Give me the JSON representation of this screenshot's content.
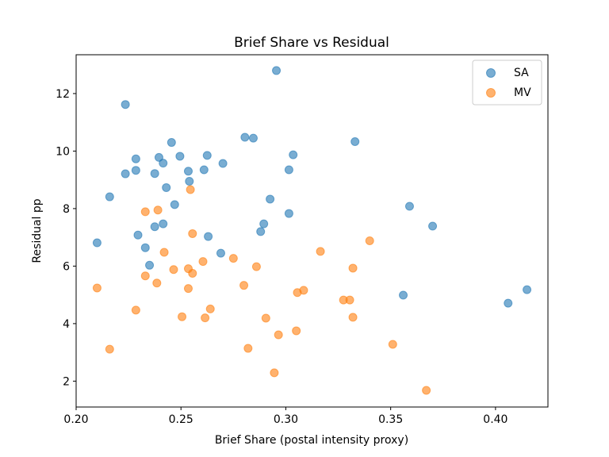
{
  "chart_data": {
    "type": "scatter",
    "title": "Brief Share vs Residual",
    "xlabel": "Brief Share (postal intensity proxy)",
    "ylabel": "Residual pp",
    "xlim": [
      0.2,
      0.425
    ],
    "ylim": [
      1.1,
      13.35
    ],
    "xticks": [
      0.2,
      0.25,
      0.3,
      0.35,
      0.4
    ],
    "xtick_labels": [
      "0.20",
      "0.25",
      "0.30",
      "0.35",
      "0.40"
    ],
    "yticks": [
      2,
      4,
      6,
      8,
      10,
      12
    ],
    "ytick_labels": [
      "2",
      "4",
      "6",
      "8",
      "10",
      "12"
    ],
    "grid": false,
    "legend_position": "top-right",
    "series": [
      {
        "name": "SA",
        "color": "#1f77b4",
        "x": [
          0.2955,
          0.2235,
          0.333,
          0.2455,
          0.2805,
          0.2845,
          0.3035,
          0.2625,
          0.2495,
          0.2395,
          0.2285,
          0.2415,
          0.27,
          0.2285,
          0.2235,
          0.2375,
          0.2535,
          0.261,
          0.3015,
          0.254,
          0.243,
          0.216,
          0.2925,
          0.247,
          0.359,
          0.3015,
          0.2895,
          0.37,
          0.288,
          0.2375,
          0.2415,
          0.2295,
          0.263,
          0.233,
          0.269,
          0.235,
          0.21,
          0.415,
          0.356,
          0.406
        ],
        "y": [
          12.8,
          11.62,
          10.33,
          10.3,
          10.48,
          10.45,
          9.87,
          9.85,
          9.82,
          9.78,
          9.73,
          9.58,
          9.57,
          9.33,
          9.21,
          9.22,
          9.3,
          9.35,
          9.35,
          8.95,
          8.73,
          8.41,
          8.33,
          8.14,
          8.08,
          7.83,
          7.47,
          7.39,
          7.2,
          7.37,
          7.47,
          7.08,
          7.03,
          6.64,
          6.45,
          6.03,
          6.81,
          5.18,
          4.99,
          4.71
        ]
      },
      {
        "name": "MV",
        "color": "#ff7f0e",
        "x": [
          0.2545,
          0.233,
          0.239,
          0.2555,
          0.34,
          0.3165,
          0.242,
          0.275,
          0.2605,
          0.332,
          0.286,
          0.2535,
          0.2465,
          0.2555,
          0.233,
          0.2385,
          0.28,
          0.21,
          0.2535,
          0.3085,
          0.3055,
          0.3275,
          0.3305,
          0.264,
          0.2285,
          0.2505,
          0.2615,
          0.2905,
          0.332,
          0.305,
          0.2965,
          0.351,
          0.216,
          0.282,
          0.2945,
          0.367
        ],
        "y": [
          8.66,
          7.89,
          7.95,
          7.13,
          6.88,
          6.51,
          6.48,
          6.27,
          6.16,
          5.93,
          5.98,
          5.91,
          5.88,
          5.75,
          5.66,
          5.41,
          5.33,
          5.24,
          5.22,
          5.16,
          5.08,
          4.82,
          4.82,
          4.51,
          4.47,
          4.24,
          4.2,
          4.19,
          4.22,
          3.75,
          3.61,
          3.28,
          3.11,
          3.14,
          2.29,
          1.68
        ]
      }
    ]
  }
}
